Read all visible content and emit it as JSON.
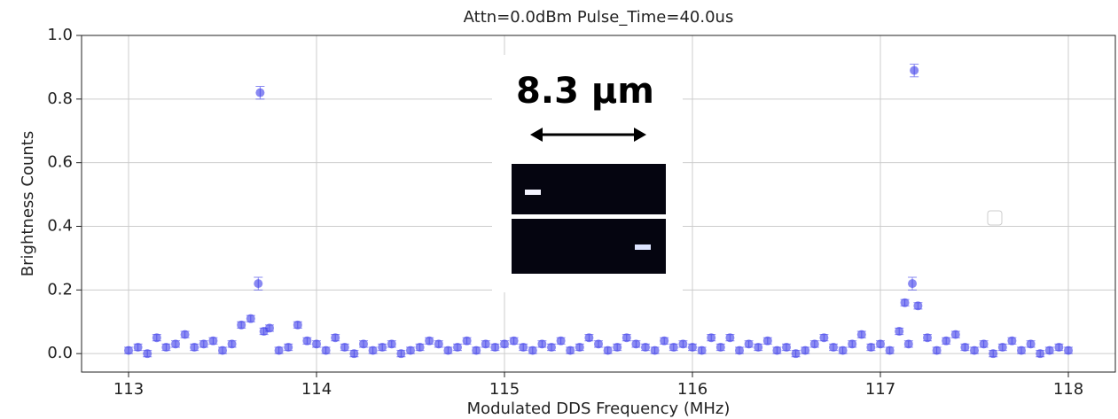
{
  "chart_data": {
    "type": "scatter",
    "title": "Attn=0.0dBm Pulse_Time=40.0us",
    "x_label": "Modulated DDS Frequency (MHz)",
    "y_label": "Brightness Counts",
    "series": [
      {
        "color": "#3b3bea",
        "x": [
          113.0,
          113.05,
          113.1,
          113.15,
          113.2,
          113.25,
          113.3,
          113.35,
          113.4,
          113.45,
          113.5,
          113.55,
          113.6,
          113.65,
          113.69,
          113.7,
          113.72,
          113.75,
          113.8,
          113.85,
          113.9,
          113.95,
          114.0,
          114.05,
          114.1,
          114.15,
          114.2,
          114.25,
          114.3,
          114.35,
          114.4,
          114.45,
          114.5,
          114.55,
          114.6,
          114.65,
          114.7,
          114.75,
          114.8,
          114.85,
          114.9,
          114.95,
          115.0,
          115.05,
          115.1,
          115.15,
          115.2,
          115.25,
          115.3,
          115.35,
          115.4,
          115.45,
          115.5,
          115.55,
          115.6,
          115.65,
          115.7,
          115.75,
          115.8,
          115.85,
          115.9,
          115.95,
          116.0,
          116.05,
          116.1,
          116.15,
          116.2,
          116.25,
          116.3,
          116.35,
          116.4,
          116.45,
          116.5,
          116.55,
          116.6,
          116.65,
          116.7,
          116.75,
          116.8,
          116.85,
          116.9,
          116.95,
          117.0,
          117.05,
          117.1,
          117.13,
          117.15,
          117.17,
          117.18,
          117.2,
          117.25,
          117.3,
          117.35,
          117.4,
          117.45,
          117.5,
          117.55,
          117.6,
          117.65,
          117.7,
          117.75,
          117.8,
          117.85,
          117.9,
          117.95,
          118.0
        ],
        "values": [
          0.01,
          0.02,
          0.0,
          0.05,
          0.02,
          0.03,
          0.06,
          0.02,
          0.03,
          0.04,
          0.01,
          0.03,
          0.09,
          0.11,
          0.22,
          0.82,
          0.07,
          0.08,
          0.01,
          0.02,
          0.09,
          0.04,
          0.03,
          0.01,
          0.05,
          0.02,
          0.0,
          0.03,
          0.01,
          0.02,
          0.03,
          0.0,
          0.01,
          0.02,
          0.04,
          0.03,
          0.01,
          0.02,
          0.04,
          0.01,
          0.03,
          0.02,
          0.03,
          0.04,
          0.02,
          0.01,
          0.03,
          0.02,
          0.04,
          0.01,
          0.02,
          0.05,
          0.03,
          0.01,
          0.02,
          0.05,
          0.03,
          0.02,
          0.01,
          0.04,
          0.02,
          0.03,
          0.02,
          0.01,
          0.05,
          0.02,
          0.05,
          0.01,
          0.03,
          0.02,
          0.04,
          0.01,
          0.02,
          0.0,
          0.01,
          0.03,
          0.05,
          0.02,
          0.01,
          0.03,
          0.06,
          0.02,
          0.03,
          0.01,
          0.07,
          0.16,
          0.03,
          0.22,
          0.89,
          0.15,
          0.05,
          0.01,
          0.04,
          0.06,
          0.02,
          0.01,
          0.03,
          0.0,
          0.02,
          0.04,
          0.01,
          0.03,
          0.0,
          0.01,
          0.02,
          0.01
        ],
        "errors": [
          0.01,
          0.01,
          0.01,
          0.01,
          0.01,
          0.01,
          0.01,
          0.01,
          0.01,
          0.01,
          0.01,
          0.01,
          0.01,
          0.01,
          0.02,
          0.02,
          0.01,
          0.01,
          0.01,
          0.01,
          0.01,
          0.01,
          0.01,
          0.01,
          0.01,
          0.01,
          0.01,
          0.01,
          0.01,
          0.01,
          0.01,
          0.01,
          0.01,
          0.01,
          0.01,
          0.01,
          0.01,
          0.01,
          0.01,
          0.01,
          0.01,
          0.01,
          0.01,
          0.01,
          0.01,
          0.01,
          0.01,
          0.01,
          0.01,
          0.01,
          0.01,
          0.01,
          0.01,
          0.01,
          0.01,
          0.01,
          0.01,
          0.01,
          0.01,
          0.01,
          0.01,
          0.01,
          0.01,
          0.01,
          0.01,
          0.01,
          0.01,
          0.01,
          0.01,
          0.01,
          0.01,
          0.01,
          0.01,
          0.01,
          0.01,
          0.01,
          0.01,
          0.01,
          0.01,
          0.01,
          0.01,
          0.01,
          0.01,
          0.01,
          0.01,
          0.01,
          0.01,
          0.02,
          0.02,
          0.01,
          0.01,
          0.01,
          0.01,
          0.01,
          0.01,
          0.01,
          0.01,
          0.01,
          0.01,
          0.01,
          0.01,
          0.01,
          0.01,
          0.01,
          0.01,
          0.01
        ]
      }
    ],
    "xlim": [
      112.75,
      118.25
    ],
    "ylim": [
      -0.058,
      1.0
    ],
    "xticks": [
      113,
      114,
      115,
      116,
      117,
      118
    ],
    "yticks": [
      {
        "value": 0,
        "label": "0.0"
      },
      0.2,
      0.4,
      0.6,
      0.8,
      {
        "value": 1,
        "label": "1.0"
      }
    ],
    "grid": true,
    "inset": {
      "label": "8.3 µm"
    }
  }
}
